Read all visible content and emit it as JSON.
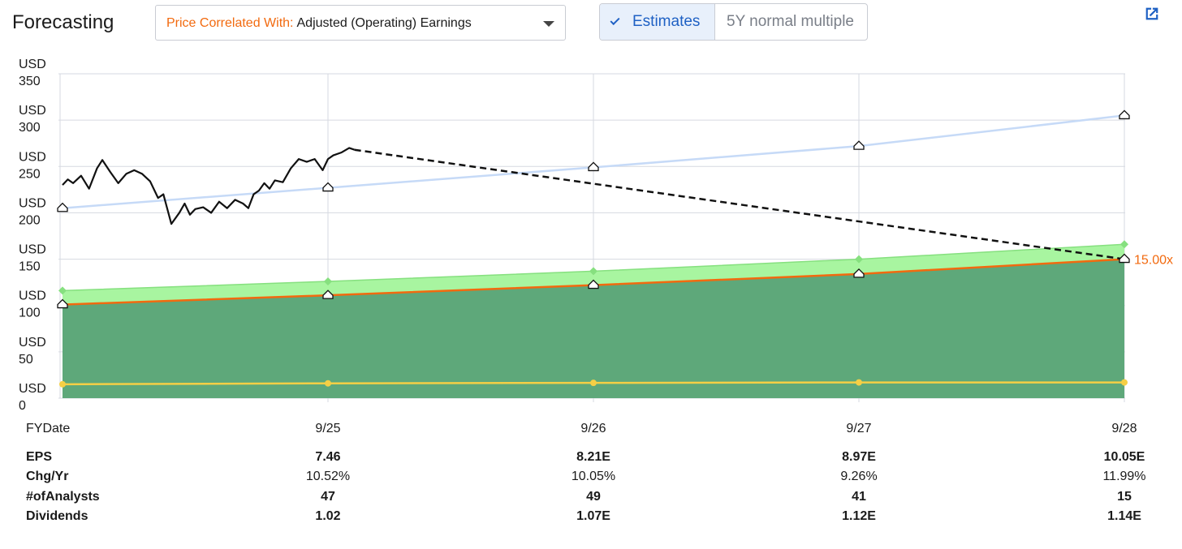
{
  "header": {
    "title": "Forecasting",
    "dropdown_prefix": "Price Correlated With:",
    "dropdown_value": "Adjusted (Operating) Earnings",
    "toggle_estimates": "Estimates",
    "toggle_multiple": "5Y normal multiple"
  },
  "icons": {
    "dropdown": "chevron-down-icon",
    "external": "external-link-icon",
    "check": "check-icon"
  },
  "colors": {
    "price_line": "#111111",
    "projection": "#111111",
    "normal_pe_line": "#c6daf7",
    "earnings_line": "#f26a0f",
    "earnings_fill": "#5ea87a",
    "band_fill": "#a8f5a0",
    "band_edge": "#86e07f",
    "dividend_line": "#f5cf45",
    "accent_blue": "#1f61c4"
  },
  "chart_data": {
    "type": "line",
    "y_tick_labels": [
      [
        "USD",
        "0"
      ],
      [
        "USD",
        "50"
      ],
      [
        "USD",
        "100"
      ],
      [
        "USD",
        "150"
      ],
      [
        "USD",
        "200"
      ],
      [
        "USD",
        "250"
      ],
      [
        "USD",
        "300"
      ],
      [
        "USD",
        "350"
      ]
    ],
    "ylim": [
      0,
      350
    ],
    "x_label": "FYDate",
    "categories": [
      "9/25",
      "9/26",
      "9/27",
      "9/28"
    ],
    "series": [
      {
        "key": "normal_pe",
        "x": [
          0,
          1,
          2,
          3,
          4
        ],
        "values": [
          205,
          227,
          249,
          272,
          305
        ]
      },
      {
        "key": "earnings_justified",
        "x": [
          0,
          1,
          2,
          3,
          4
        ],
        "values": [
          101,
          111,
          122,
          134,
          150
        ]
      },
      {
        "key": "earnings_upper",
        "x": [
          0,
          1,
          2,
          3,
          4
        ],
        "values": [
          116,
          126,
          137,
          150,
          166
        ]
      },
      {
        "key": "dividends",
        "x": [
          0,
          1,
          2,
          3,
          4
        ],
        "values": [
          15,
          16,
          16.5,
          17,
          17
        ]
      },
      {
        "key": "price_projection",
        "x": [
          1.1,
          4
        ],
        "values": [
          268,
          150
        ]
      }
    ],
    "price_history": {
      "x": [
        0,
        0.02,
        0.04,
        0.07,
        0.1,
        0.13,
        0.15,
        0.18,
        0.21,
        0.24,
        0.27,
        0.3,
        0.33,
        0.36,
        0.38,
        0.41,
        0.44,
        0.46,
        0.48,
        0.5,
        0.53,
        0.56,
        0.59,
        0.62,
        0.65,
        0.68,
        0.7,
        0.72,
        0.74,
        0.76,
        0.78,
        0.8,
        0.83,
        0.86,
        0.89,
        0.92,
        0.95,
        0.98,
        1.0,
        1.02,
        1.05,
        1.08,
        1.1
      ],
      "values": [
        230,
        236,
        232,
        240,
        226,
        248,
        257,
        244,
        232,
        242,
        246,
        242,
        234,
        216,
        220,
        188,
        200,
        210,
        198,
        204,
        206,
        200,
        212,
        205,
        214,
        210,
        205,
        220,
        224,
        232,
        226,
        235,
        233,
        248,
        258,
        255,
        258,
        246,
        258,
        262,
        265,
        270,
        268
      ]
    },
    "multiple_label": "15.00x",
    "grid": true
  },
  "table": {
    "header": {
      "label": "FYDate",
      "values": [
        "9/25",
        "9/26",
        "9/27",
        "9/28"
      ]
    },
    "rows": [
      {
        "label": "EPS",
        "values": [
          "7.46",
          "8.21E",
          "8.97E",
          "10.05E"
        ]
      },
      {
        "label": "Chg/Yr",
        "values": [
          "10.52%",
          "10.05%",
          "9.26%",
          "11.99%"
        ]
      },
      {
        "label": "#ofAnalysts",
        "values": [
          "47",
          "49",
          "41",
          "15"
        ]
      },
      {
        "label": "Dividends",
        "values": [
          "1.02",
          "1.07E",
          "1.12E",
          "1.14E"
        ]
      }
    ]
  }
}
